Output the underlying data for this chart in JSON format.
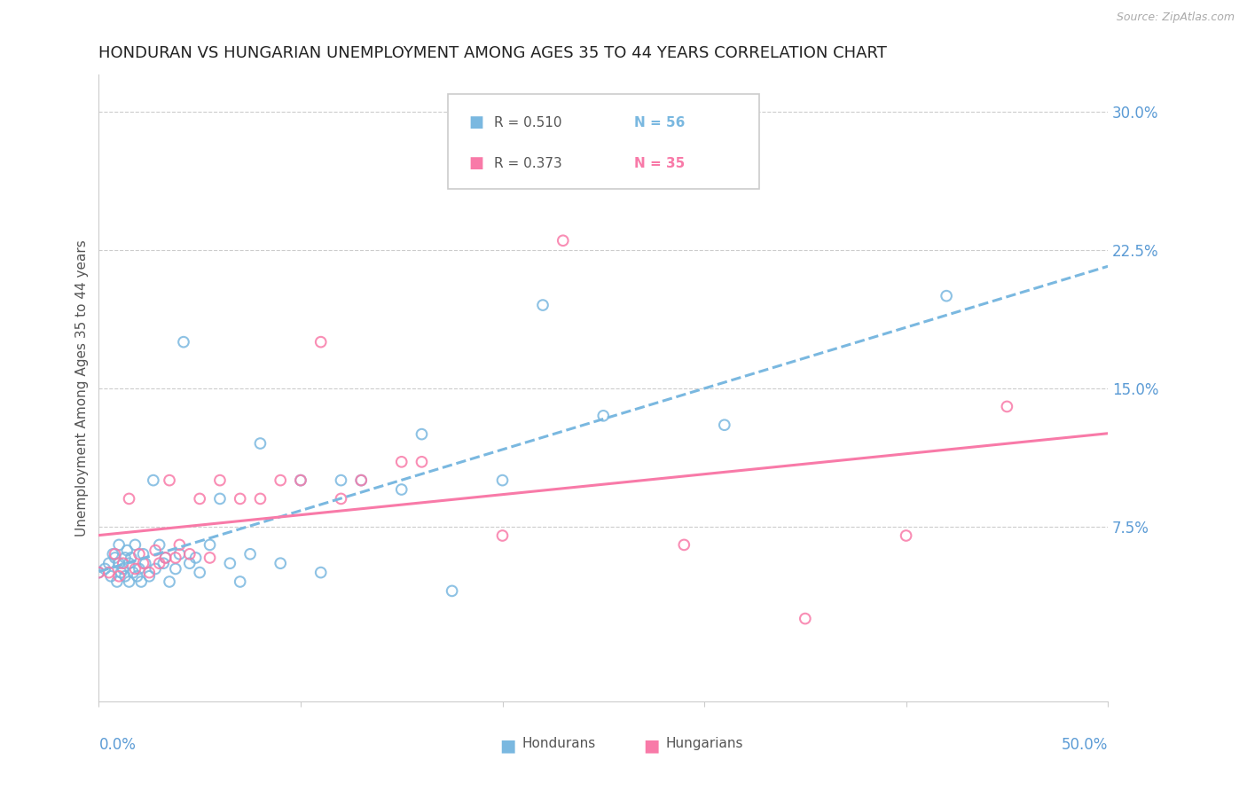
{
  "title": "HONDURAN VS HUNGARIAN UNEMPLOYMENT AMONG AGES 35 TO 44 YEARS CORRELATION CHART",
  "source": "Source: ZipAtlas.com",
  "ylabel": "Unemployment Among Ages 35 to 44 years",
  "xlim": [
    0.0,
    0.5
  ],
  "ylim": [
    -0.02,
    0.32
  ],
  "yticks": [
    0.075,
    0.15,
    0.225,
    0.3
  ],
  "ytick_labels": [
    "7.5%",
    "15.0%",
    "22.5%",
    "30.0%"
  ],
  "title_fontsize": 13,
  "axis_label_fontsize": 11,
  "tick_fontsize": 12,
  "legend_R1": "R = 0.510",
  "legend_N1": "N = 56",
  "legend_R2": "R = 0.373",
  "legend_N2": "N = 35",
  "honduran_color": "#7ab8e0",
  "hungarian_color": "#f87aa8",
  "background_color": "#ffffff",
  "grid_color": "#cccccc",
  "label_color": "#5b9bd5",
  "honduran_scatter_x": [
    0.0,
    0.003,
    0.005,
    0.006,
    0.007,
    0.008,
    0.009,
    0.01,
    0.01,
    0.011,
    0.012,
    0.013,
    0.013,
    0.014,
    0.015,
    0.015,
    0.016,
    0.017,
    0.018,
    0.019,
    0.02,
    0.021,
    0.022,
    0.023,
    0.025,
    0.027,
    0.028,
    0.03,
    0.032,
    0.033,
    0.035,
    0.038,
    0.04,
    0.042,
    0.045,
    0.048,
    0.05,
    0.055,
    0.06,
    0.065,
    0.07,
    0.075,
    0.08,
    0.09,
    0.1,
    0.11,
    0.12,
    0.13,
    0.15,
    0.16,
    0.175,
    0.2,
    0.22,
    0.25,
    0.31,
    0.42
  ],
  "honduran_scatter_y": [
    0.05,
    0.052,
    0.055,
    0.048,
    0.06,
    0.058,
    0.045,
    0.055,
    0.065,
    0.05,
    0.052,
    0.048,
    0.058,
    0.062,
    0.045,
    0.055,
    0.058,
    0.05,
    0.065,
    0.048,
    0.052,
    0.045,
    0.06,
    0.055,
    0.048,
    0.1,
    0.052,
    0.065,
    0.055,
    0.058,
    0.045,
    0.052,
    0.06,
    0.175,
    0.055,
    0.058,
    0.05,
    0.065,
    0.09,
    0.055,
    0.045,
    0.06,
    0.12,
    0.055,
    0.1,
    0.05,
    0.1,
    0.1,
    0.095,
    0.125,
    0.04,
    0.1,
    0.195,
    0.135,
    0.13,
    0.2
  ],
  "hungarian_scatter_x": [
    0.0,
    0.005,
    0.008,
    0.01,
    0.012,
    0.015,
    0.018,
    0.02,
    0.022,
    0.025,
    0.028,
    0.03,
    0.033,
    0.035,
    0.038,
    0.04,
    0.045,
    0.05,
    0.055,
    0.06,
    0.07,
    0.08,
    0.09,
    0.1,
    0.11,
    0.12,
    0.13,
    0.15,
    0.16,
    0.2,
    0.23,
    0.29,
    0.35,
    0.4,
    0.45
  ],
  "hungarian_scatter_y": [
    0.05,
    0.05,
    0.06,
    0.048,
    0.055,
    0.09,
    0.052,
    0.06,
    0.055,
    0.05,
    0.062,
    0.055,
    0.058,
    0.1,
    0.058,
    0.065,
    0.06,
    0.09,
    0.058,
    0.1,
    0.09,
    0.09,
    0.1,
    0.1,
    0.175,
    0.09,
    0.1,
    0.11,
    0.11,
    0.07,
    0.23,
    0.065,
    0.025,
    0.07,
    0.14
  ]
}
